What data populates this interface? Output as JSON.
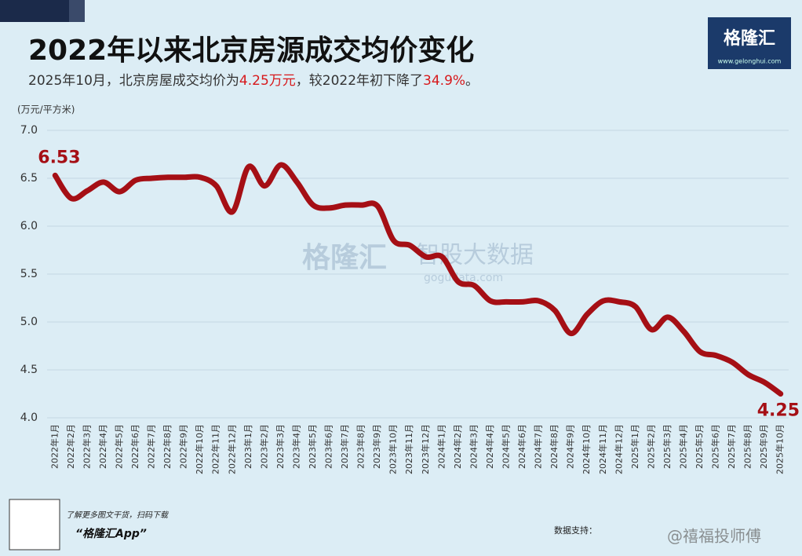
{
  "chart_data": {
    "type": "line",
    "title": "2022年以来北京房源成交均价变化",
    "subtitle": [
      "2025年10月，北京房屋成交均价为",
      "4.25万元",
      "，较2022年初下降了",
      "34.9%",
      "。"
    ],
    "y_label": "(万元/平方米)",
    "categories": [
      "2022年1月",
      "2022年2月",
      "2022年3月",
      "2022年4月",
      "2022年5月",
      "2022年6月",
      "2022年7月",
      "2022年8月",
      "2022年9月",
      "2022年10月",
      "2022年11月",
      "2022年12月",
      "2023年1月",
      "2023年2月",
      "2023年3月",
      "2023年4月",
      "2023年5月",
      "2023年6月",
      "2023年7月",
      "2023年8月",
      "2023年9月",
      "2023年10月",
      "2023年11月",
      "2023年12月",
      "2024年1月",
      "2024年2月",
      "2024年3月",
      "2024年4月",
      "2024年5月",
      "2024年6月",
      "2024年7月",
      "2024年8月",
      "2024年9月",
      "2024年10月",
      "2024年11月",
      "2024年12月",
      "2025年1月",
      "2025年2月",
      "2025年3月",
      "2025年4月",
      "2025年5月",
      "2025年6月",
      "2025年7月",
      "2025年8月",
      "2025年9月",
      "2025年10月"
    ],
    "values": [
      6.53,
      6.29,
      6.37,
      6.46,
      6.36,
      6.48,
      6.5,
      6.51,
      6.51,
      6.51,
      6.42,
      6.15,
      6.62,
      6.42,
      6.64,
      6.46,
      6.22,
      6.19,
      6.22,
      6.22,
      6.21,
      5.85,
      5.8,
      5.68,
      5.68,
      5.42,
      5.38,
      5.22,
      5.21,
      5.21,
      5.22,
      5.12,
      4.88,
      5.08,
      5.22,
      5.21,
      5.16,
      4.92,
      5.05,
      4.9,
      4.69,
      4.65,
      4.58,
      4.45,
      4.37,
      4.25
    ],
    "labeled_points": [
      0,
      45
    ],
    "color": "#a50f15",
    "ylim": [
      4.0,
      7.0
    ],
    "yticks": [
      {
        "value": 4.0,
        "label": "4.0"
      },
      4.5,
      {
        "value": 5.0,
        "label": "5.0"
      },
      5.5,
      {
        "value": 6.0,
        "label": "6.0"
      },
      6.5,
      {
        "value": 7.0,
        "label": "7.0"
      }
    ],
    "grid": true,
    "logo": {
      "name": "格隆汇",
      "url": "www.gelonghui.com"
    },
    "watermark": {
      "name": "格隆汇",
      "data": "智股大数据",
      "url": "gogudata.com"
    },
    "footer": {
      "qr_text": "了解更多图文干货，扫码下载",
      "app": "“格隆汇App”",
      "source": "数据支持：",
      "weibo": "@禧福投师傅"
    }
  }
}
